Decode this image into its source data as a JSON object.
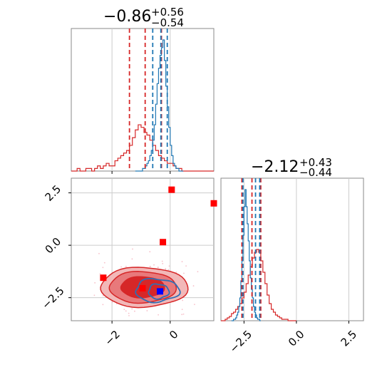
{
  "chart_data": [
    {
      "type": "histogram",
      "panel": "top-left",
      "title_value": "−0.86",
      "title_plus": "+0.56",
      "title_minus": "−0.54",
      "xlim": [
        -3.4,
        1.5
      ],
      "grid": true,
      "colors": {
        "red": "#d62728",
        "blue": "#1f77b4"
      },
      "series": [
        {
          "color": "red",
          "bin_start": -3.4,
          "bin_width": 0.1,
          "counts": [
            0,
            0,
            1,
            0,
            0,
            1,
            1,
            0,
            1,
            2,
            1,
            2,
            3,
            2,
            2,
            4,
            5,
            6,
            7,
            8,
            10,
            13,
            16,
            18,
            17,
            15,
            14,
            12,
            10,
            8,
            6,
            5,
            4,
            3,
            3,
            2,
            1,
            1,
            0,
            0,
            0,
            0,
            0,
            0,
            0,
            0,
            0,
            0,
            0
          ],
          "dashed_lines": [
            -1.4,
            -0.86,
            -0.3
          ]
        },
        {
          "color": "blue",
          "bin_start": -1.2,
          "bin_width": 0.05,
          "counts": [
            0,
            0,
            0,
            0,
            0,
            1,
            1,
            2,
            3,
            4,
            6,
            8,
            12,
            18,
            26,
            34,
            40,
            45,
            48,
            51,
            43,
            33,
            25,
            17,
            10,
            6,
            3,
            2,
            1,
            1,
            0,
            0,
            0
          ],
          "dashed_lines": [
            -0.6,
            -0.32,
            -0.1
          ]
        }
      ]
    },
    {
      "type": "scatter-contour",
      "panel": "bottom-left",
      "xlim": [
        -3.4,
        1.5
      ],
      "ylim": [
        -3.6,
        3.2
      ],
      "xticks": [
        -2,
        0
      ],
      "yticks": [
        -2.5,
        0.0,
        2.5
      ],
      "xtick_labels": [
        "−2",
        "0"
      ],
      "ytick_labels": [
        "−2.5",
        "0.0",
        "2.5"
      ],
      "red_points": [
        {
          "x": 0.05,
          "y": 2.65
        },
        {
          "x": 1.5,
          "y": 2.0
        },
        {
          "x": -0.25,
          "y": 0.15
        },
        {
          "x": -2.3,
          "y": -1.55
        },
        {
          "x": -0.95,
          "y": -2.05
        }
      ],
      "blue_points": [
        {
          "x": -0.35,
          "y": -2.2
        }
      ],
      "red_contours": [
        {
          "cx": -0.9,
          "cy": -2.0,
          "rx": 1.5,
          "ry": 0.95
        },
        {
          "cx": -0.95,
          "cy": -2.0,
          "rx": 1.15,
          "ry": 0.75
        },
        {
          "cx": -0.95,
          "cy": -2.0,
          "rx": 0.75,
          "ry": 0.5
        }
      ],
      "blue_contours": [
        {
          "cx": -0.45,
          "cy": -2.15,
          "rx": 0.75,
          "ry": 0.55
        },
        {
          "cx": -0.4,
          "cy": -2.2,
          "rx": 0.35,
          "ry": 0.35
        }
      ]
    },
    {
      "type": "histogram",
      "panel": "bottom-right",
      "title_value": "−2.12",
      "title_plus": "+0.43",
      "title_minus": "−0.44",
      "xlim": [
        -3.6,
        3.2
      ],
      "xticks": [
        -2.5,
        0.0,
        2.5
      ],
      "xtick_labels": [
        "−2.5",
        "0.0",
        "2.5"
      ],
      "grid": true,
      "series": [
        {
          "color": "red",
          "bin_start": -3.6,
          "bin_width": 0.1,
          "counts": [
            0,
            0,
            1,
            2,
            3,
            5,
            6,
            8,
            10,
            12,
            16,
            20,
            26,
            32,
            38,
            44,
            48,
            50,
            48,
            42,
            34,
            26,
            18,
            12,
            8,
            6,
            4,
            3,
            2,
            1,
            1,
            1,
            0,
            0,
            0,
            0
          ],
          "dashed_lines": [
            -2.6,
            -2.12,
            -1.7
          ]
        },
        {
          "color": "blue",
          "bin_start": -3.1,
          "bin_width": 0.05,
          "counts": [
            0,
            0,
            1,
            1,
            2,
            4,
            6,
            10,
            16,
            28,
            42,
            60,
            80,
            92,
            80,
            68,
            56,
            42,
            30,
            22,
            16,
            10,
            6,
            4,
            2,
            1,
            1,
            0
          ],
          "dashed_lines": [
            -2.55,
            -1.95,
            -1.75
          ]
        }
      ]
    }
  ]
}
